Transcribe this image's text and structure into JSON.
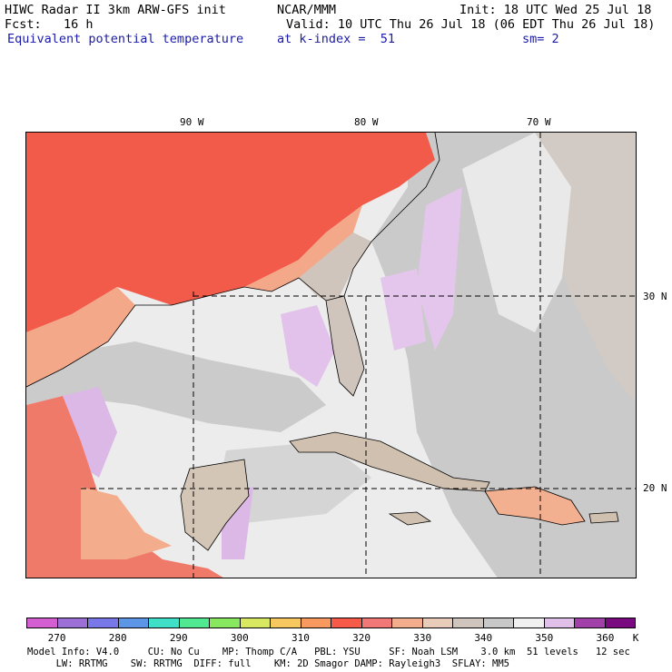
{
  "header": {
    "title": "HIWC Radar II 3km ARW-GFS init",
    "org": "NCAR/MMM",
    "init": "Init: 18 UTC Wed 25 Jul 18",
    "fcst": "Fcst:   16 h",
    "valid": "Valid: 10 UTC Thu 26 Jul 18 (06 EDT Thu 26 Jul 18)",
    "field": "Equivalent potential temperature",
    "level": "at k-index =  51",
    "smooth": "sm= 2"
  },
  "map": {
    "longitude_labels": [
      "90 W",
      "80 W",
      "70 W"
    ],
    "latitude_labels": [
      "30 N",
      "20 N"
    ]
  },
  "colorbar": {
    "colors": [
      "#d35fd3",
      "#9c6fd6",
      "#7878e8",
      "#5d96e6",
      "#40e0c8",
      "#50e890",
      "#88e860",
      "#d8e860",
      "#f8c860",
      "#f89a60",
      "#f85a4a",
      "#f27878",
      "#f4ad8c",
      "#e8cbb8",
      "#cfc5bd",
      "#c8c8c8",
      "#f0f0f0",
      "#e0c0e8",
      "#a040a8",
      "#7a0a80"
    ],
    "tick_labels": [
      "270",
      "280",
      "290",
      "300",
      "310",
      "320",
      "330",
      "340",
      "350",
      "360",
      "K"
    ]
  },
  "footer": {
    "line1": "Model Info: V4.0     CU: No Cu    MP: Thomp C/A   PBL: YSU     SF: Noah LSM    3.0 km  51 levels   12 sec",
    "line2": "     LW: RRTMG    SW: RRTMG  DIFF: full    KM: 2D Smagor DAMP: Rayleigh3  SFLAY: MM5"
  }
}
